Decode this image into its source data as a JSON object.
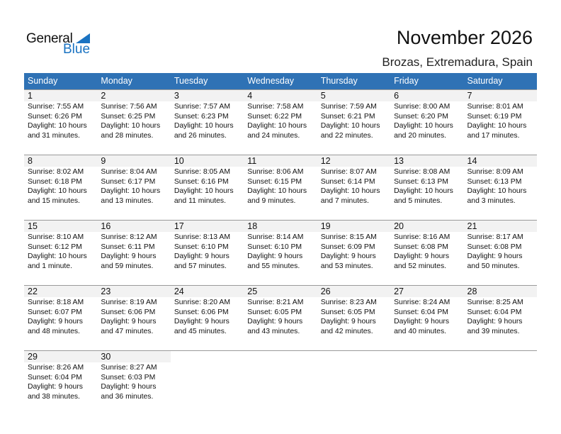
{
  "logo": {
    "line1": "General",
    "line2": "Blue"
  },
  "header": {
    "title": "November 2026",
    "location": "Brozas, Extremadura, Spain"
  },
  "colors": {
    "header_bg": "#2f72b5",
    "day_band": "#f2f2f2",
    "brand": "#1a73c2"
  },
  "weekdays": [
    "Sunday",
    "Monday",
    "Tuesday",
    "Wednesday",
    "Thursday",
    "Friday",
    "Saturday"
  ],
  "weeks": [
    [
      {
        "d": "1",
        "sr": "Sunrise: 7:55 AM",
        "ss": "Sunset: 6:26 PM",
        "dl1": "Daylight: 10 hours",
        "dl2": "and 31 minutes."
      },
      {
        "d": "2",
        "sr": "Sunrise: 7:56 AM",
        "ss": "Sunset: 6:25 PM",
        "dl1": "Daylight: 10 hours",
        "dl2": "and 28 minutes."
      },
      {
        "d": "3",
        "sr": "Sunrise: 7:57 AM",
        "ss": "Sunset: 6:23 PM",
        "dl1": "Daylight: 10 hours",
        "dl2": "and 26 minutes."
      },
      {
        "d": "4",
        "sr": "Sunrise: 7:58 AM",
        "ss": "Sunset: 6:22 PM",
        "dl1": "Daylight: 10 hours",
        "dl2": "and 24 minutes."
      },
      {
        "d": "5",
        "sr": "Sunrise: 7:59 AM",
        "ss": "Sunset: 6:21 PM",
        "dl1": "Daylight: 10 hours",
        "dl2": "and 22 minutes."
      },
      {
        "d": "6",
        "sr": "Sunrise: 8:00 AM",
        "ss": "Sunset: 6:20 PM",
        "dl1": "Daylight: 10 hours",
        "dl2": "and 20 minutes."
      },
      {
        "d": "7",
        "sr": "Sunrise: 8:01 AM",
        "ss": "Sunset: 6:19 PM",
        "dl1": "Daylight: 10 hours",
        "dl2": "and 17 minutes."
      }
    ],
    [
      {
        "d": "8",
        "sr": "Sunrise: 8:02 AM",
        "ss": "Sunset: 6:18 PM",
        "dl1": "Daylight: 10 hours",
        "dl2": "and 15 minutes."
      },
      {
        "d": "9",
        "sr": "Sunrise: 8:04 AM",
        "ss": "Sunset: 6:17 PM",
        "dl1": "Daylight: 10 hours",
        "dl2": "and 13 minutes."
      },
      {
        "d": "10",
        "sr": "Sunrise: 8:05 AM",
        "ss": "Sunset: 6:16 PM",
        "dl1": "Daylight: 10 hours",
        "dl2": "and 11 minutes."
      },
      {
        "d": "11",
        "sr": "Sunrise: 8:06 AM",
        "ss": "Sunset: 6:15 PM",
        "dl1": "Daylight: 10 hours",
        "dl2": "and 9 minutes."
      },
      {
        "d": "12",
        "sr": "Sunrise: 8:07 AM",
        "ss": "Sunset: 6:14 PM",
        "dl1": "Daylight: 10 hours",
        "dl2": "and 7 minutes."
      },
      {
        "d": "13",
        "sr": "Sunrise: 8:08 AM",
        "ss": "Sunset: 6:13 PM",
        "dl1": "Daylight: 10 hours",
        "dl2": "and 5 minutes."
      },
      {
        "d": "14",
        "sr": "Sunrise: 8:09 AM",
        "ss": "Sunset: 6:13 PM",
        "dl1": "Daylight: 10 hours",
        "dl2": "and 3 minutes."
      }
    ],
    [
      {
        "d": "15",
        "sr": "Sunrise: 8:10 AM",
        "ss": "Sunset: 6:12 PM",
        "dl1": "Daylight: 10 hours",
        "dl2": "and 1 minute."
      },
      {
        "d": "16",
        "sr": "Sunrise: 8:12 AM",
        "ss": "Sunset: 6:11 PM",
        "dl1": "Daylight: 9 hours",
        "dl2": "and 59 minutes."
      },
      {
        "d": "17",
        "sr": "Sunrise: 8:13 AM",
        "ss": "Sunset: 6:10 PM",
        "dl1": "Daylight: 9 hours",
        "dl2": "and 57 minutes."
      },
      {
        "d": "18",
        "sr": "Sunrise: 8:14 AM",
        "ss": "Sunset: 6:10 PM",
        "dl1": "Daylight: 9 hours",
        "dl2": "and 55 minutes."
      },
      {
        "d": "19",
        "sr": "Sunrise: 8:15 AM",
        "ss": "Sunset: 6:09 PM",
        "dl1": "Daylight: 9 hours",
        "dl2": "and 53 minutes."
      },
      {
        "d": "20",
        "sr": "Sunrise: 8:16 AM",
        "ss": "Sunset: 6:08 PM",
        "dl1": "Daylight: 9 hours",
        "dl2": "and 52 minutes."
      },
      {
        "d": "21",
        "sr": "Sunrise: 8:17 AM",
        "ss": "Sunset: 6:08 PM",
        "dl1": "Daylight: 9 hours",
        "dl2": "and 50 minutes."
      }
    ],
    [
      {
        "d": "22",
        "sr": "Sunrise: 8:18 AM",
        "ss": "Sunset: 6:07 PM",
        "dl1": "Daylight: 9 hours",
        "dl2": "and 48 minutes."
      },
      {
        "d": "23",
        "sr": "Sunrise: 8:19 AM",
        "ss": "Sunset: 6:06 PM",
        "dl1": "Daylight: 9 hours",
        "dl2": "and 47 minutes."
      },
      {
        "d": "24",
        "sr": "Sunrise: 8:20 AM",
        "ss": "Sunset: 6:06 PM",
        "dl1": "Daylight: 9 hours",
        "dl2": "and 45 minutes."
      },
      {
        "d": "25",
        "sr": "Sunrise: 8:21 AM",
        "ss": "Sunset: 6:05 PM",
        "dl1": "Daylight: 9 hours",
        "dl2": "and 43 minutes."
      },
      {
        "d": "26",
        "sr": "Sunrise: 8:23 AM",
        "ss": "Sunset: 6:05 PM",
        "dl1": "Daylight: 9 hours",
        "dl2": "and 42 minutes."
      },
      {
        "d": "27",
        "sr": "Sunrise: 8:24 AM",
        "ss": "Sunset: 6:04 PM",
        "dl1": "Daylight: 9 hours",
        "dl2": "and 40 minutes."
      },
      {
        "d": "28",
        "sr": "Sunrise: 8:25 AM",
        "ss": "Sunset: 6:04 PM",
        "dl1": "Daylight: 9 hours",
        "dl2": "and 39 minutes."
      }
    ],
    [
      {
        "d": "29",
        "sr": "Sunrise: 8:26 AM",
        "ss": "Sunset: 6:04 PM",
        "dl1": "Daylight: 9 hours",
        "dl2": "and 38 minutes."
      },
      {
        "d": "30",
        "sr": "Sunrise: 8:27 AM",
        "ss": "Sunset: 6:03 PM",
        "dl1": "Daylight: 9 hours",
        "dl2": "and 36 minutes."
      },
      null,
      null,
      null,
      null,
      null
    ]
  ]
}
